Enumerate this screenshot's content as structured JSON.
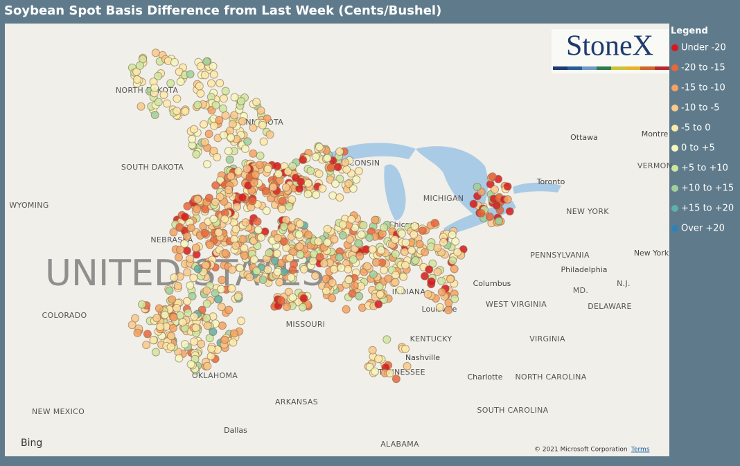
{
  "title": "Soybean Spot Basis Difference from Last Week (Cents/Bushel)",
  "logo": "StoneX",
  "legend": {
    "title": "Legend",
    "items": [
      {
        "label": "Under -20",
        "color": "#d7191c"
      },
      {
        "label": "-20 to -15",
        "color": "#e8663c"
      },
      {
        "label": "-15 to -10",
        "color": "#f4a261"
      },
      {
        "label": "-10 to -5",
        "color": "#f9c98a"
      },
      {
        "label": "-5 to 0",
        "color": "#fde9a9"
      },
      {
        "label": "0 to +5",
        "color": "#f5f7c0"
      },
      {
        "label": "+5 to +10",
        "color": "#cce8a0"
      },
      {
        "label": "+10 to +15",
        "color": "#9fd09a"
      },
      {
        "label": "+15 to +20",
        "color": "#5fb0a8"
      },
      {
        "label": "Over +20",
        "color": "#2b83ba"
      }
    ]
  },
  "map": {
    "country": "UNITED STATES",
    "labels": [
      "NORTH DAKOTA",
      "MINNESOTA",
      "SOUTH DAKOTA",
      "WYOMING",
      "NEBRASKA",
      "COLORADO",
      "MISSOURI",
      "OKLAHOMA",
      "NEW MEXICO",
      "ARKANSAS",
      "Dallas",
      "ALABAMA",
      "TENNESSEE",
      "KENTUCKY",
      "Nashville",
      "Louisville",
      "INDIANA",
      "Columbus",
      "WEST VIRGINIA",
      "VIRGINIA",
      "NORTH CAROLINA",
      "Charlotte",
      "SOUTH CAROLINA",
      "PENNSYLVANIA",
      "Philadelphia",
      "NEW YORK",
      "New York",
      "Ottawa",
      "Montre",
      "VERMON",
      "Toronto",
      "MICHIGAN",
      "Chicago",
      "WISCONSIN",
      "MD.",
      "DELAWARE",
      "N.J."
    ]
  },
  "footer": {
    "brand": "Bing",
    "copyright": "© 2021 Microsoft Corporation",
    "terms": "Terms"
  }
}
